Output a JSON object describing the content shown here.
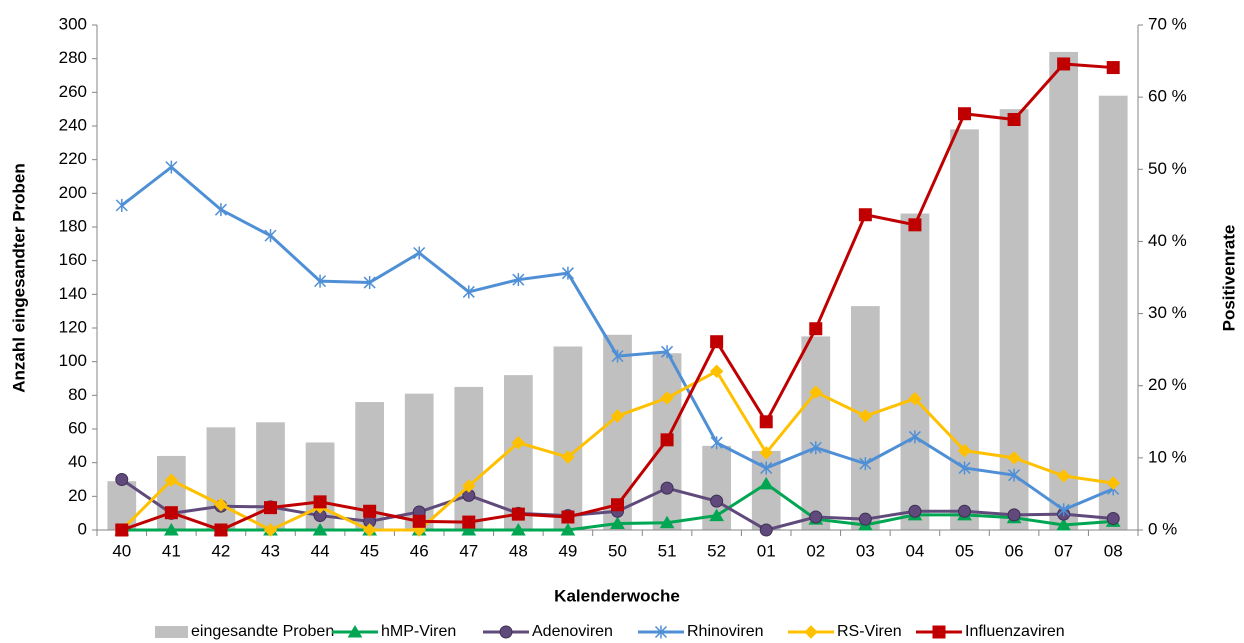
{
  "chart_data": {
    "type": "bar",
    "x_label": "Kalenderwoche",
    "y_label": "Anzahl eingesandter Proben",
    "y2_label": "Positivenrate",
    "categories": [
      "40",
      "41",
      "42",
      "43",
      "44",
      "45",
      "46",
      "47",
      "48",
      "49",
      "50",
      "51",
      "52",
      "01",
      "02",
      "03",
      "04",
      "05",
      "06",
      "07",
      "08"
    ],
    "ylim": [
      0,
      300
    ],
    "yticks": [
      0,
      20,
      40,
      60,
      80,
      100,
      120,
      140,
      160,
      180,
      200,
      220,
      240,
      260,
      280,
      300
    ],
    "y2lim": [
      0,
      70
    ],
    "y2ticks": [
      {
        "value": 0,
        "label": "0 %"
      },
      {
        "value": 10,
        "label": "10 %"
      },
      {
        "value": 20,
        "label": "20 %"
      },
      {
        "value": 30,
        "label": "30 %"
      },
      {
        "value": 40,
        "label": "40 %"
      },
      {
        "value": 50,
        "label": "50 %"
      },
      {
        "value": 60,
        "label": "60 %"
      },
      {
        "value": 70,
        "label": "70 %"
      }
    ],
    "grid": false,
    "legend": "bottom",
    "series": [
      {
        "name": "eingesandte Proben",
        "type": "bar",
        "color": "#c0c0c0",
        "values": [
          29,
          44,
          61,
          64,
          52,
          76,
          81,
          85,
          92,
          109,
          116,
          105,
          50,
          47,
          115,
          133,
          188,
          238,
          250,
          284,
          258
        ]
      },
      {
        "name": "hMP-Viren",
        "type": "line",
        "axis": "y2",
        "marker": "triangle",
        "color": "#00a651",
        "values": [
          0,
          0,
          0,
          0,
          0,
          0,
          0,
          0,
          0,
          0,
          0.9,
          1,
          2,
          6.4,
          1.5,
          0.7,
          2.1,
          2.1,
          1.7,
          0.7,
          1.2
        ]
      },
      {
        "name": "Adenoviren",
        "type": "line",
        "axis": "y2",
        "marker": "circle",
        "color": "#604a7b",
        "values": [
          7,
          2.3,
          3.3,
          3.2,
          2,
          1.2,
          2.5,
          4.8,
          2.3,
          2,
          2.6,
          5.8,
          4,
          0,
          1.8,
          1.5,
          2.6,
          2.6,
          2.1,
          2.2,
          1.6
        ]
      },
      {
        "name": "Rhinoviren",
        "type": "line",
        "axis": "y2",
        "marker": "star",
        "color": "#4f8fd6",
        "values": [
          45,
          50.3,
          44.4,
          40.8,
          34.5,
          34.3,
          38.4,
          33,
          34.7,
          35.6,
          24.1,
          24.7,
          12.1,
          8.6,
          11.4,
          9.2,
          12.9,
          8.6,
          7.6,
          2.8,
          5.7
        ]
      },
      {
        "name": "RS-Viren",
        "type": "line",
        "axis": "y2",
        "marker": "diamond",
        "color": "#ffc000",
        "values": [
          0,
          6.9,
          3.5,
          0,
          3.2,
          0,
          0,
          6.1,
          12.1,
          10.1,
          15.8,
          18.3,
          22,
          10.7,
          19.1,
          15.8,
          18.2,
          11,
          10,
          7.5,
          6.5
        ]
      },
      {
        "name": "Influenzaviren",
        "type": "line",
        "axis": "y2",
        "marker": "square",
        "color": "#c00000",
        "values": [
          0,
          2.4,
          0,
          3.1,
          3.9,
          2.6,
          1.2,
          1.1,
          2.2,
          1.8,
          3.5,
          12.5,
          26.1,
          15,
          27.9,
          43.7,
          42.3,
          57.7,
          56.9,
          64.6,
          64.1
        ]
      }
    ]
  }
}
